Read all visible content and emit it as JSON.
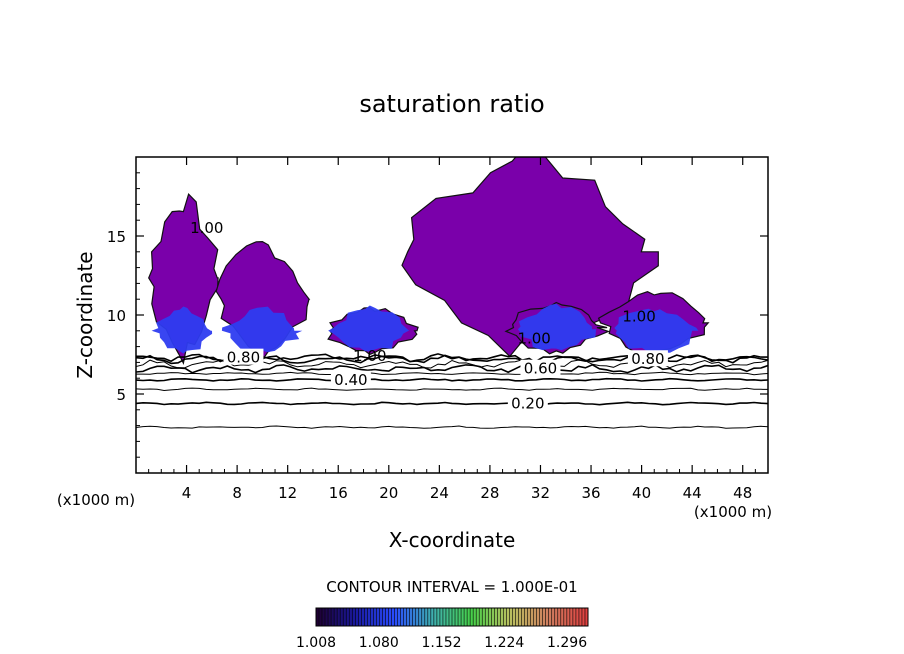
{
  "chart_data": {
    "type": "contour",
    "title": "saturation ratio",
    "xlabel": "X-coordinate",
    "ylabel": "Z-coordinate",
    "x_unit_label": "(x1000 m)",
    "y_unit_label": "(x1000 m)",
    "xlim": [
      0,
      50
    ],
    "ylim": [
      0,
      20
    ],
    "x_ticks": [
      4,
      8,
      12,
      16,
      20,
      24,
      28,
      32,
      36,
      40,
      44,
      48
    ],
    "y_ticks": [
      5,
      10,
      15
    ],
    "contour_interval_text": "CONTOUR INTERVAL = 1.000E-01",
    "contour_levels": [
      0.1,
      0.2,
      0.3,
      0.4,
      0.5,
      0.6,
      0.7,
      0.8,
      0.9,
      1.0
    ],
    "contour_lines": [
      {
        "label": "",
        "z": 2.9
      },
      {
        "label": "0.20",
        "z": 4.4,
        "label_x": 31
      },
      {
        "label": "",
        "z": 5.3
      },
      {
        "label": "0.40",
        "z": 5.9,
        "label_x": 17
      },
      {
        "label": "",
        "z": 6.3
      },
      {
        "label": "0.60",
        "z": 6.6,
        "label_x": 32
      },
      {
        "label": "",
        "z": 6.9
      },
      {
        "label": "0.80",
        "z": 7.2,
        "label_x": 40.5
      },
      {
        "label": "0.80",
        "z": 7.3,
        "label_x": 8.5
      }
    ],
    "contour_labels_extra": [
      {
        "text": "1.00",
        "x": 18.5,
        "z": 7.4
      },
      {
        "text": "1.00",
        "x": 31.5,
        "z": 8.5
      },
      {
        "text": "1.00",
        "x": 39.8,
        "z": 9.9
      },
      {
        "text": "1.00",
        "x": 5.6,
        "z": 15.5
      }
    ],
    "colorbar": {
      "range": [
        1.008,
        1.32
      ],
      "tick_labels": [
        "1.008",
        "1.080",
        "1.152",
        "1.224",
        "1.296"
      ],
      "colors": [
        "#1e0033",
        "#1a1aa0",
        "#2a4cff",
        "#3fb0b0",
        "#46d04a",
        "#b9c060",
        "#d08060",
        "#e04040"
      ]
    },
    "fill_colors": {
      "low": "#7a00aa",
      "mid": "#2e3cf0",
      "high": "#5566ff"
    },
    "supersaturated_regions": [
      {
        "x": [
          1,
          6.5
        ],
        "z": [
          7.5,
          17.2
        ],
        "peak": 1.05
      },
      {
        "x": [
          6.5,
          13.5
        ],
        "z": [
          7.5,
          14.5
        ],
        "peak": 1.09
      },
      {
        "x": [
          15,
          22
        ],
        "z": [
          7.5,
          10.5
        ],
        "peak": 1.09
      },
      {
        "x": [
          21.5,
          40.5
        ],
        "z": [
          8,
          20
        ],
        "peak": 1.02
      },
      {
        "x": [
          29.5,
          37
        ],
        "z": [
          7.6,
          10.8
        ],
        "peak": 1.09
      },
      {
        "x": [
          37,
          45
        ],
        "z": [
          7.5,
          11.5
        ],
        "peak": 1.1
      }
    ]
  }
}
